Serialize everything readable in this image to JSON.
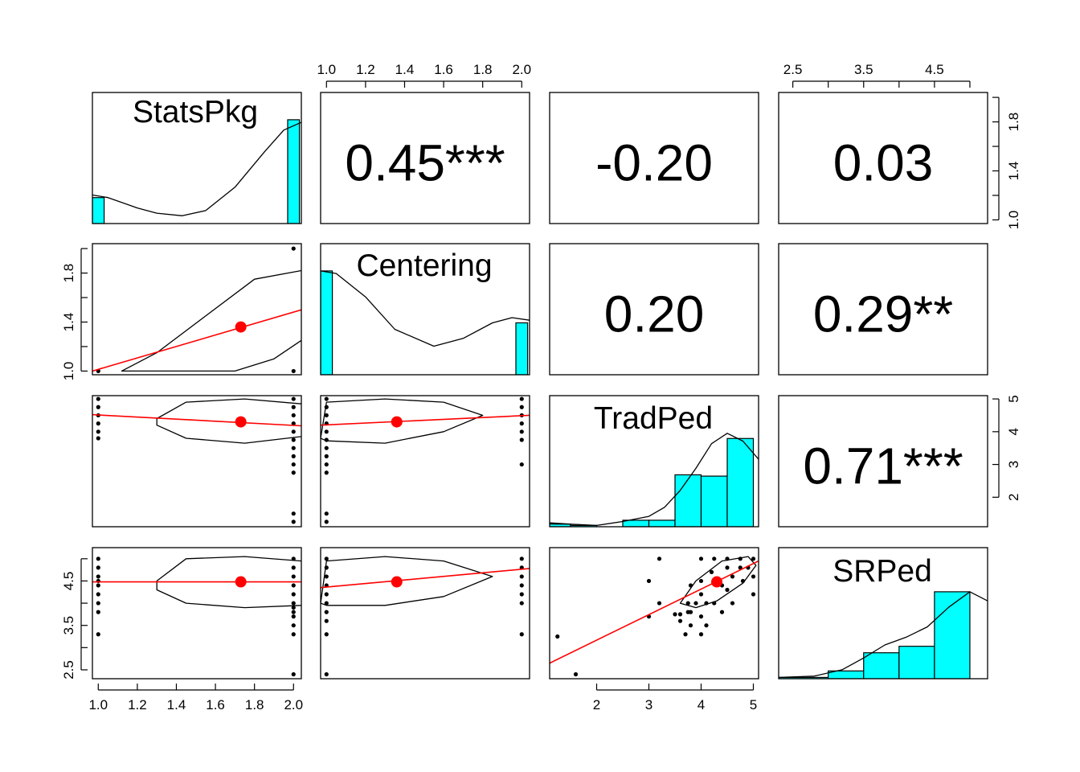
{
  "chart_data": {
    "type": "scatter",
    "subtype": "pairs-panels",
    "variables": [
      "StatsPkg",
      "Centering",
      "TradPed",
      "SRPed"
    ],
    "correlations": [
      {
        "row": 0,
        "col": 1,
        "label": "0.45***",
        "value": 0.45
      },
      {
        "row": 0,
        "col": 2,
        "label": "-0.20",
        "value": -0.2
      },
      {
        "row": 0,
        "col": 3,
        "label": "0.03",
        "value": 0.03
      },
      {
        "row": 1,
        "col": 2,
        "label": "0.20",
        "value": 0.2
      },
      {
        "row": 1,
        "col": 3,
        "label": "0.29**",
        "value": 0.29
      },
      {
        "row": 2,
        "col": 3,
        "label": "0.71***",
        "value": 0.71
      }
    ],
    "ranges": {
      "StatsPkg": [
        0.97,
        2.04
      ],
      "Centering": [
        0.97,
        2.04
      ],
      "TradPed": [
        1.1,
        5.1
      ],
      "SRPed": [
        2.3,
        5.25
      ]
    },
    "top_axis": [
      {
        "col": 1,
        "ticks": [
          1.0,
          1.2,
          1.4,
          1.6,
          1.8,
          2.0
        ],
        "labels": [
          "1.0",
          "1.2",
          "1.4",
          "1.6",
          "1.8",
          "2.0"
        ]
      },
      {
        "col": 3,
        "ticks": [
          2.5,
          3.0,
          3.5,
          4.0,
          4.5,
          5.0
        ],
        "labels": [
          "2.5",
          "",
          "3.5",
          "",
          "4.5",
          ""
        ]
      }
    ],
    "bottom_axis": [
      {
        "col": 0,
        "ticks": [
          1.0,
          1.2,
          1.4,
          1.6,
          1.8,
          2.0
        ],
        "labels": [
          "1.0",
          "1.2",
          "1.4",
          "1.6",
          "1.8",
          "2.0"
        ]
      },
      {
        "col": 2,
        "ticks": [
          2,
          3,
          4,
          5
        ],
        "labels": [
          "2",
          "3",
          "4",
          "5"
        ]
      }
    ],
    "left_axis": [
      {
        "row": 1,
        "ticks": [
          1.0,
          1.2,
          1.4,
          1.6,
          1.8,
          2.0
        ],
        "labels": [
          "1.0",
          "",
          "1.4",
          "",
          "1.8",
          ""
        ]
      },
      {
        "row": 3,
        "ticks": [
          2.5,
          3.0,
          3.5,
          4.0,
          4.5,
          5.0
        ],
        "labels": [
          "2.5",
          "",
          "3.5",
          "",
          "4.5",
          ""
        ]
      }
    ],
    "right_axis": [
      {
        "row": 0,
        "ticks": [
          1.0,
          1.2,
          1.4,
          1.6,
          1.8,
          2.0
        ],
        "labels": [
          "1.0",
          "",
          "1.4",
          "",
          "1.8",
          ""
        ]
      },
      {
        "row": 2,
        "ticks": [
          2,
          3,
          4,
          5
        ],
        "labels": [
          "2",
          "3",
          "4",
          "5"
        ]
      }
    ],
    "histograms": [
      {
        "var": "StatsPkg",
        "bins": [
          [
            0.97,
            1.03,
            0.2
          ],
          [
            1.97,
            2.03,
            0.8
          ]
        ],
        "density": [
          [
            0.97,
            0.22
          ],
          [
            1.05,
            0.2
          ],
          [
            1.2,
            0.12
          ],
          [
            1.3,
            0.08
          ],
          [
            1.43,
            0.06
          ],
          [
            1.55,
            0.1
          ],
          [
            1.7,
            0.28
          ],
          [
            1.85,
            0.55
          ],
          [
            1.95,
            0.72
          ],
          [
            2.04,
            0.78
          ]
        ]
      },
      {
        "var": "Centering",
        "bins": [
          [
            0.97,
            1.03,
            0.8
          ],
          [
            1.97,
            2.03,
            0.4
          ]
        ],
        "density": [
          [
            0.97,
            0.8
          ],
          [
            1.05,
            0.78
          ],
          [
            1.2,
            0.6
          ],
          [
            1.35,
            0.35
          ],
          [
            1.55,
            0.22
          ],
          [
            1.7,
            0.28
          ],
          [
            1.85,
            0.4
          ],
          [
            1.95,
            0.44
          ],
          [
            2.04,
            0.42
          ]
        ]
      },
      {
        "var": "TradPed",
        "bins": [
          [
            1.0,
            1.5,
            0.02
          ],
          [
            1.5,
            2.0,
            0.01
          ],
          [
            2.5,
            3.0,
            0.05
          ],
          [
            3.0,
            3.5,
            0.05
          ],
          [
            3.5,
            4.0,
            0.4
          ],
          [
            4.0,
            4.5,
            0.39
          ],
          [
            4.5,
            5.0,
            0.68
          ]
        ],
        "density": [
          [
            1.1,
            0.03
          ],
          [
            1.5,
            0.02
          ],
          [
            2.0,
            0.01
          ],
          [
            2.5,
            0.04
          ],
          [
            3.0,
            0.08
          ],
          [
            3.3,
            0.15
          ],
          [
            3.6,
            0.28
          ],
          [
            3.9,
            0.45
          ],
          [
            4.2,
            0.64
          ],
          [
            4.5,
            0.72
          ],
          [
            4.8,
            0.66
          ],
          [
            5.1,
            0.52
          ]
        ]
      },
      {
        "var": "SRPed",
        "bins": [
          [
            2.3,
            3.0,
            0.01
          ],
          [
            3.0,
            3.5,
            0.06
          ],
          [
            3.5,
            4.0,
            0.2
          ],
          [
            4.0,
            4.5,
            0.25
          ],
          [
            4.5,
            5.0,
            0.67
          ]
        ],
        "density": [
          [
            2.3,
            0.01
          ],
          [
            2.8,
            0.02
          ],
          [
            3.2,
            0.07
          ],
          [
            3.5,
            0.16
          ],
          [
            3.8,
            0.26
          ],
          [
            4.1,
            0.32
          ],
          [
            4.4,
            0.4
          ],
          [
            4.7,
            0.55
          ],
          [
            5.0,
            0.67
          ],
          [
            5.25,
            0.6
          ]
        ]
      }
    ],
    "scatter_panels": [
      {
        "row": 1,
        "col": 0,
        "points": [
          [
            1,
            1
          ],
          [
            2,
            1
          ],
          [
            2,
            2
          ]
        ],
        "mean": [
          1.73,
          1.36
        ],
        "fit": [
          [
            0.97,
            1.0
          ],
          [
            2.04,
            1.5
          ]
        ],
        "ellipse": [
          [
            1.12,
            1.0
          ],
          [
            1.3,
            1.15
          ],
          [
            1.55,
            1.45
          ],
          [
            1.8,
            1.75
          ],
          [
            2.04,
            1.82
          ],
          [
            2.15,
            1.6
          ],
          [
            2.04,
            1.25
          ],
          [
            1.9,
            1.1
          ],
          [
            1.7,
            1.0
          ]
        ]
      },
      {
        "row": 2,
        "col": 0,
        "points": [
          [
            1,
            5
          ],
          [
            1,
            4.75
          ],
          [
            1,
            4.5
          ],
          [
            1,
            4.25
          ],
          [
            1,
            4
          ],
          [
            1,
            3.8
          ],
          [
            2,
            5
          ],
          [
            2,
            4.75
          ],
          [
            2,
            4.5
          ],
          [
            2,
            4.25
          ],
          [
            2,
            4
          ],
          [
            2,
            3.75
          ],
          [
            2,
            3.5
          ],
          [
            2,
            3.25
          ],
          [
            2,
            3
          ],
          [
            2,
            2.75
          ],
          [
            2,
            1.5
          ],
          [
            2,
            1.25
          ]
        ],
        "mean": [
          1.73,
          4.3
        ],
        "fit": [
          [
            0.97,
            4.52
          ],
          [
            2.04,
            4.18
          ]
        ],
        "ellipse": [
          [
            1.3,
            4.4
          ],
          [
            1.45,
            4.9
          ],
          [
            1.75,
            5.0
          ],
          [
            2.04,
            4.85
          ],
          [
            2.1,
            4.5
          ],
          [
            2.04,
            3.85
          ],
          [
            1.75,
            3.65
          ],
          [
            1.45,
            3.8
          ],
          [
            1.3,
            4.2
          ]
        ]
      },
      {
        "row": 2,
        "col": 1,
        "points": [
          [
            1,
            5
          ],
          [
            1,
            4.75
          ],
          [
            1,
            4.5
          ],
          [
            1,
            4.25
          ],
          [
            1,
            4
          ],
          [
            1,
            3.75
          ],
          [
            1,
            3.5
          ],
          [
            1,
            3.25
          ],
          [
            1,
            3
          ],
          [
            1,
            2.75
          ],
          [
            1,
            1.5
          ],
          [
            1,
            1.25
          ],
          [
            2,
            5
          ],
          [
            2,
            4.75
          ],
          [
            2,
            4.5
          ],
          [
            2,
            4.25
          ],
          [
            2,
            4
          ],
          [
            2,
            3.75
          ],
          [
            2,
            3
          ]
        ],
        "mean": [
          1.36,
          4.3
        ],
        "fit": [
          [
            0.97,
            4.2
          ],
          [
            2.04,
            4.5
          ]
        ],
        "ellipse": [
          [
            0.97,
            3.8
          ],
          [
            1.0,
            4.9
          ],
          [
            1.3,
            5.0
          ],
          [
            1.6,
            4.9
          ],
          [
            1.8,
            4.5
          ],
          [
            1.6,
            4.0
          ],
          [
            1.3,
            3.65
          ],
          [
            1.0,
            3.72
          ]
        ]
      },
      {
        "row": 3,
        "col": 0,
        "points": [
          [
            1,
            5
          ],
          [
            1,
            4.8
          ],
          [
            1,
            4.6
          ],
          [
            1,
            4.5
          ],
          [
            1,
            4.4
          ],
          [
            1,
            4.2
          ],
          [
            1,
            4
          ],
          [
            1,
            3.8
          ],
          [
            1,
            3.3
          ],
          [
            2,
            5
          ],
          [
            2,
            4.8
          ],
          [
            2,
            4.6
          ],
          [
            2,
            4.4
          ],
          [
            2,
            4.2
          ],
          [
            2,
            4
          ],
          [
            2,
            3.9
          ],
          [
            2,
            3.8
          ],
          [
            2,
            3.7
          ],
          [
            2,
            3.5
          ],
          [
            2,
            3.3
          ],
          [
            2,
            2.4
          ]
        ],
        "mean": [
          1.73,
          4.48
        ],
        "fit": [
          [
            0.97,
            4.48
          ],
          [
            2.04,
            4.48
          ]
        ],
        "ellipse": [
          [
            1.3,
            4.5
          ],
          [
            1.45,
            5.0
          ],
          [
            1.75,
            5.05
          ],
          [
            2.04,
            4.95
          ],
          [
            2.1,
            4.5
          ],
          [
            2.04,
            3.95
          ],
          [
            1.75,
            3.9
          ],
          [
            1.45,
            4.0
          ],
          [
            1.3,
            4.3
          ]
        ]
      },
      {
        "row": 3,
        "col": 1,
        "points": [
          [
            1,
            5
          ],
          [
            1,
            4.8
          ],
          [
            1,
            4.6
          ],
          [
            1,
            4.4
          ],
          [
            1,
            4.2
          ],
          [
            1,
            4
          ],
          [
            1,
            3.8
          ],
          [
            1,
            3.6
          ],
          [
            1,
            3.3
          ],
          [
            1,
            2.4
          ],
          [
            2,
            5
          ],
          [
            2,
            4.8
          ],
          [
            2,
            4.6
          ],
          [
            2,
            4.4
          ],
          [
            2,
            4.2
          ],
          [
            2,
            4
          ],
          [
            2,
            3.3
          ]
        ],
        "mean": [
          1.36,
          4.48
        ],
        "fit": [
          [
            0.97,
            4.35
          ],
          [
            2.04,
            4.78
          ]
        ],
        "ellipse": [
          [
            0.97,
            4.0
          ],
          [
            1.0,
            4.95
          ],
          [
            1.3,
            5.05
          ],
          [
            1.6,
            4.95
          ],
          [
            1.85,
            4.6
          ],
          [
            1.6,
            4.15
          ],
          [
            1.3,
            3.95
          ],
          [
            1.0,
            3.95
          ]
        ]
      },
      {
        "row": 3,
        "col": 2,
        "points": [
          [
            1.25,
            3.25
          ],
          [
            1.6,
            2.4
          ],
          [
            3.0,
            3.7
          ],
          [
            3.0,
            4.5
          ],
          [
            3.2,
            4.0
          ],
          [
            3.2,
            5.0
          ],
          [
            3.5,
            3.75
          ],
          [
            3.6,
            3.75
          ],
          [
            3.6,
            3.6
          ],
          [
            3.7,
            3.3
          ],
          [
            3.75,
            3.8
          ],
          [
            3.75,
            4.0
          ],
          [
            3.8,
            3.8
          ],
          [
            3.8,
            3.5
          ],
          [
            3.8,
            4.4
          ],
          [
            3.9,
            4.0
          ],
          [
            4.0,
            3.3
          ],
          [
            4.0,
            3.7
          ],
          [
            4.0,
            4.2
          ],
          [
            4.0,
            4.5
          ],
          [
            4.0,
            5.0
          ],
          [
            4.1,
            3.5
          ],
          [
            4.1,
            4.0
          ],
          [
            4.2,
            4.7
          ],
          [
            4.25,
            4.0
          ],
          [
            4.25,
            5.0
          ],
          [
            4.4,
            4.4
          ],
          [
            4.4,
            3.8
          ],
          [
            4.5,
            4.8
          ],
          [
            4.5,
            5.0
          ],
          [
            4.5,
            4.3
          ],
          [
            4.6,
            4.0
          ],
          [
            4.6,
            4.6
          ],
          [
            4.75,
            4.8
          ],
          [
            4.75,
            5.0
          ],
          [
            4.8,
            4.5
          ],
          [
            4.9,
            4.8
          ],
          [
            5.0,
            4.2
          ],
          [
            5.0,
            4.6
          ],
          [
            5.0,
            5.0
          ]
        ],
        "mean": [
          4.3,
          4.48
        ],
        "fit": [
          [
            1.1,
            2.65
          ],
          [
            5.1,
            4.95
          ]
        ],
        "ellipse": [
          [
            3.6,
            4.0
          ],
          [
            3.9,
            4.5
          ],
          [
            4.4,
            4.95
          ],
          [
            4.9,
            5.05
          ],
          [
            5.05,
            4.85
          ],
          [
            4.8,
            4.45
          ],
          [
            4.3,
            4.05
          ],
          [
            3.9,
            3.9
          ]
        ]
      }
    ]
  }
}
